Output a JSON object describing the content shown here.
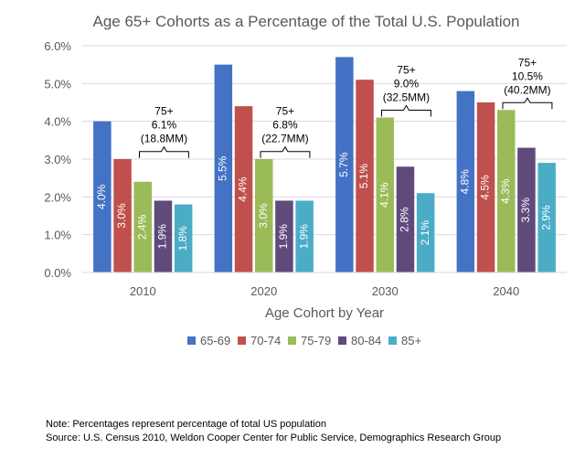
{
  "chart_data": {
    "type": "bar",
    "title": "Age 65+ Cohorts as a Percentage of the Total U.S. Population",
    "xlabel": "Age Cohort by Year",
    "ylabel": "",
    "ylim": [
      0,
      6
    ],
    "ytick_values": [
      0,
      1,
      2,
      3,
      4,
      5,
      6
    ],
    "ytick_labels": [
      "0.0%",
      "1.0%",
      "2.0%",
      "3.0%",
      "4.0%",
      "5.0%",
      "6.0%"
    ],
    "grid": true,
    "legend_position": "bottom",
    "categories": [
      "2010",
      "2020",
      "2030",
      "2040"
    ],
    "series": [
      {
        "name": "65-69",
        "color": "#4472c4",
        "values": [
          4.0,
          5.5,
          5.7,
          4.8
        ],
        "labels": [
          "4.0%",
          "5.5%",
          "5.7%",
          "4.8%"
        ]
      },
      {
        "name": "70-74",
        "color": "#c0504d",
        "values": [
          3.0,
          4.4,
          5.1,
          4.5
        ],
        "labels": [
          "3.0%",
          "4.4%",
          "5.1%",
          "4.5%"
        ]
      },
      {
        "name": "75-79",
        "color": "#9bbb59",
        "values": [
          2.4,
          3.0,
          4.1,
          4.3
        ],
        "labels": [
          "2.4%",
          "3.0%",
          "4.1%",
          "4.3%"
        ]
      },
      {
        "name": "80-84",
        "color": "#604a7b",
        "values": [
          1.9,
          1.9,
          2.8,
          3.3
        ],
        "labels": [
          "1.9%",
          "1.9%",
          "2.8%",
          "3.3%"
        ]
      },
      {
        "name": "85+",
        "color": "#4bacc6",
        "values": [
          1.8,
          1.9,
          2.1,
          2.9
        ],
        "labels": [
          "1.8%",
          "1.9%",
          "2.1%",
          "2.9%"
        ]
      }
    ],
    "annotations": [
      {
        "category": "2010",
        "lines": [
          "75+",
          "6.1%",
          "(18.8MM)"
        ]
      },
      {
        "category": "2020",
        "lines": [
          "75+",
          "6.8%",
          "(22.7MM)"
        ]
      },
      {
        "category": "2030",
        "lines": [
          "75+",
          "9.0%",
          "(32.5MM)"
        ]
      },
      {
        "category": "2040",
        "lines": [
          "75+",
          "10.5%",
          "(40.2MM)"
        ]
      }
    ]
  },
  "footer": {
    "note": "Note:  Percentages represent percentage of total US population",
    "source": "Source:  U.S. Census 2010, Weldon Cooper Center for Public Service, Demographics Research Group"
  }
}
